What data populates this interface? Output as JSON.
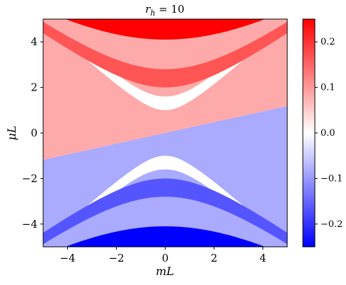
{
  "chart_data": {
    "type": "heatmap",
    "title_main": "r",
    "title_sub": "h",
    "title_rest": " = 10",
    "xlabel": "mL",
    "ylabel": "μL",
    "xlim": [
      -5,
      5
    ],
    "ylim": [
      -5,
      5
    ],
    "xticks": [
      -4,
      -2,
      0,
      2,
      4
    ],
    "yticks": [
      -4,
      -2,
      0,
      2,
      4
    ],
    "xtick_labels": [
      "−4",
      "−2",
      "0",
      "2",
      "4"
    ],
    "ytick_labels": [
      "−4",
      "−2",
      "0",
      "2",
      "4"
    ],
    "colorbar": {
      "range": [
        -0.25,
        0.25
      ],
      "colormap": "bwr",
      "ticks": [
        0.2,
        0.1,
        0.0,
        -0.1,
        -0.2
      ],
      "tick_labels": [
        "0.2",
        "0.1",
        "0.0",
        "−0.1",
        "−0.2"
      ]
    },
    "levels": {
      "bright_red": 0.24,
      "medium_red": 0.16,
      "light_red": 0.08,
      "white": 0.0,
      "light_blue": -0.08,
      "medium_blue": -0.16,
      "bright_blue": -0.24
    },
    "colors": {
      "bright_red": "#ff0000",
      "medium_red": "#ff5555",
      "light_red": "#ffaaaa",
      "white": "#ffffff",
      "light_blue": "#aaaaff",
      "medium_blue": "#5555ff",
      "bright_blue": "#0000ff"
    },
    "boundaries": {
      "sign_change": "μL ≈ 0.236·mL",
      "upper_white_band_vertex_mu": [
        1.0,
        1.6
      ],
      "upper_medium_red_band_vertex_mu": [
        2.0,
        2.8
      ],
      "upper_bright_red_vertex_mu": 4.1,
      "lower_white_band_vertex_mu": [
        -1.0,
        -1.6
      ],
      "lower_medium_blue_band_vertex_mu": [
        -2.0,
        -2.8
      ],
      "lower_bright_blue_vertex_mu": -4.1
    }
  }
}
